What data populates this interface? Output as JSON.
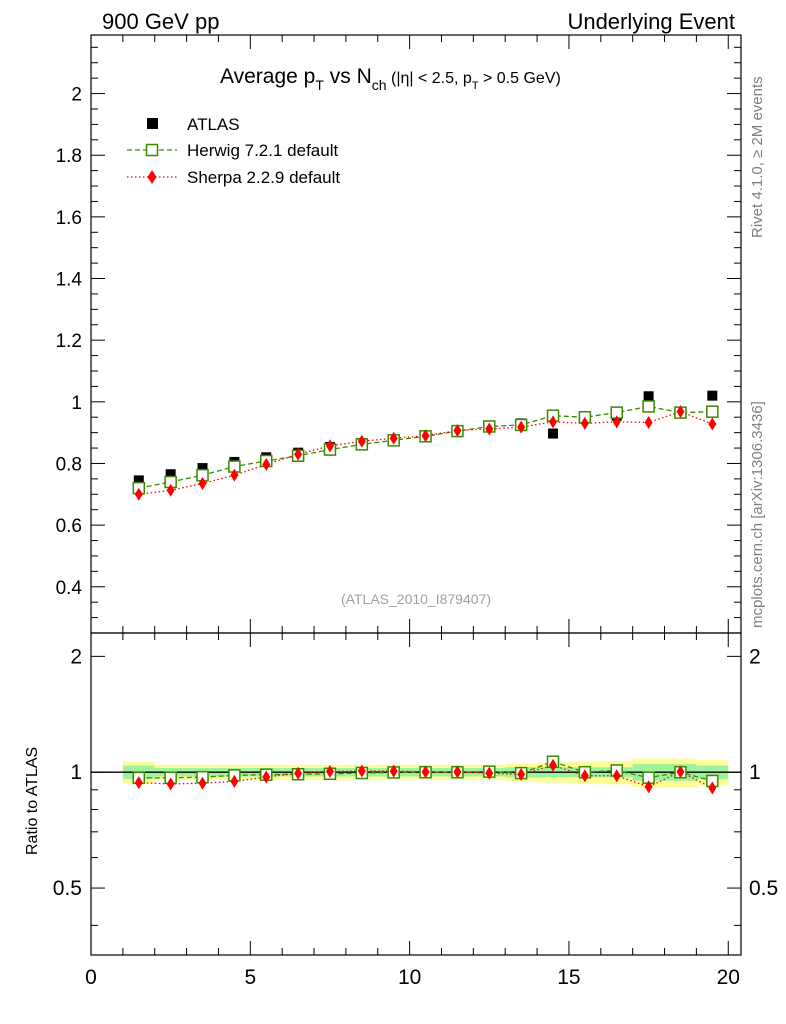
{
  "header": {
    "left": "900 GeV pp",
    "right": "Underlying Event"
  },
  "side_labels": {
    "rivet": "Rivet 4.1.0, ≥ 2M events",
    "mcplots": "mcplots.cern.ch [arXiv:1306.3436]"
  },
  "chart_data": {
    "type": "scatter",
    "title": {
      "main": "Average p",
      "main_sub": "T",
      "mid": " vs N",
      "mid_sub": "ch",
      "cond1": " (|η| < 2.5, p",
      "cond_sub": "T",
      "cond2": " > 0.5 GeV)"
    },
    "watermark": "(ATLAS_2010_I879407)",
    "x": [
      1.5,
      2.5,
      3.5,
      4.5,
      5.5,
      6.5,
      7.5,
      8.5,
      9.5,
      10.5,
      11.5,
      12.5,
      13.5,
      14.5,
      15.5,
      16.5,
      17.5,
      18.5,
      19.5
    ],
    "xlim": [
      0,
      20.4
    ],
    "xticks": [
      0,
      5,
      10,
      15,
      20
    ],
    "xtick_labels": [
      "0",
      "5",
      "10",
      "15",
      "20"
    ],
    "main_panel": {
      "ylim": [
        0.25,
        2.19
      ],
      "yticks": [
        0.4,
        0.6,
        0.8,
        1.0,
        1.2,
        1.4,
        1.6,
        1.8,
        2.0
      ],
      "ytick_labels": [
        "0.4",
        "0.6",
        "0.8",
        "1",
        "1.2",
        "1.4",
        "1.6",
        "1.8",
        "2"
      ]
    },
    "ratio_panel": {
      "ylabel": "Ratio to ATLAS",
      "ylim_log": [
        0.335,
        2.3
      ],
      "yticks": [
        0.5,
        1,
        2
      ],
      "ytick_labels": [
        "0.5",
        "1",
        "2"
      ],
      "band_inner": [
        0.04,
        0.025,
        0.025,
        0.025,
        0.025,
        0.025,
        0.025,
        0.025,
        0.025,
        0.025,
        0.025,
        0.025,
        0.03,
        0.03,
        0.03,
        0.03,
        0.05,
        0.05,
        0.04
      ],
      "band_outer": [
        0.065,
        0.045,
        0.045,
        0.045,
        0.045,
        0.045,
        0.045,
        0.045,
        0.045,
        0.045,
        0.045,
        0.045,
        0.055,
        0.06,
        0.065,
        0.07,
        0.085,
        0.085,
        0.075
      ]
    },
    "legend_position": "top-left",
    "series": [
      {
        "name": "ATLAS",
        "marker": "square",
        "color": "#000000",
        "values": [
          0.745,
          0.765,
          0.785,
          0.805,
          0.82,
          0.835,
          0.853,
          0.866,
          0.876,
          0.888,
          0.905,
          0.917,
          0.93,
          0.897,
          0.95,
          0.955,
          1.018,
          0.965,
          1.02
        ]
      },
      {
        "name": "Herwig 7.2.1 default",
        "marker": "open-square",
        "line": "dashed",
        "color": "#3a8a00",
        "values": [
          0.72,
          0.74,
          0.762,
          0.79,
          0.808,
          0.825,
          0.845,
          0.862,
          0.875,
          0.888,
          0.905,
          0.92,
          0.925,
          0.955,
          0.95,
          0.965,
          0.985,
          0.965,
          0.968
        ]
      },
      {
        "name": "Sherpa 2.2.9 default",
        "marker": "diamond",
        "line": "dotted",
        "color": "#ff0000",
        "values": [
          0.7,
          0.713,
          0.735,
          0.762,
          0.797,
          0.83,
          0.857,
          0.872,
          0.882,
          0.89,
          0.907,
          0.912,
          0.918,
          0.935,
          0.93,
          0.935,
          0.933,
          0.968,
          0.928
        ]
      }
    ]
  }
}
